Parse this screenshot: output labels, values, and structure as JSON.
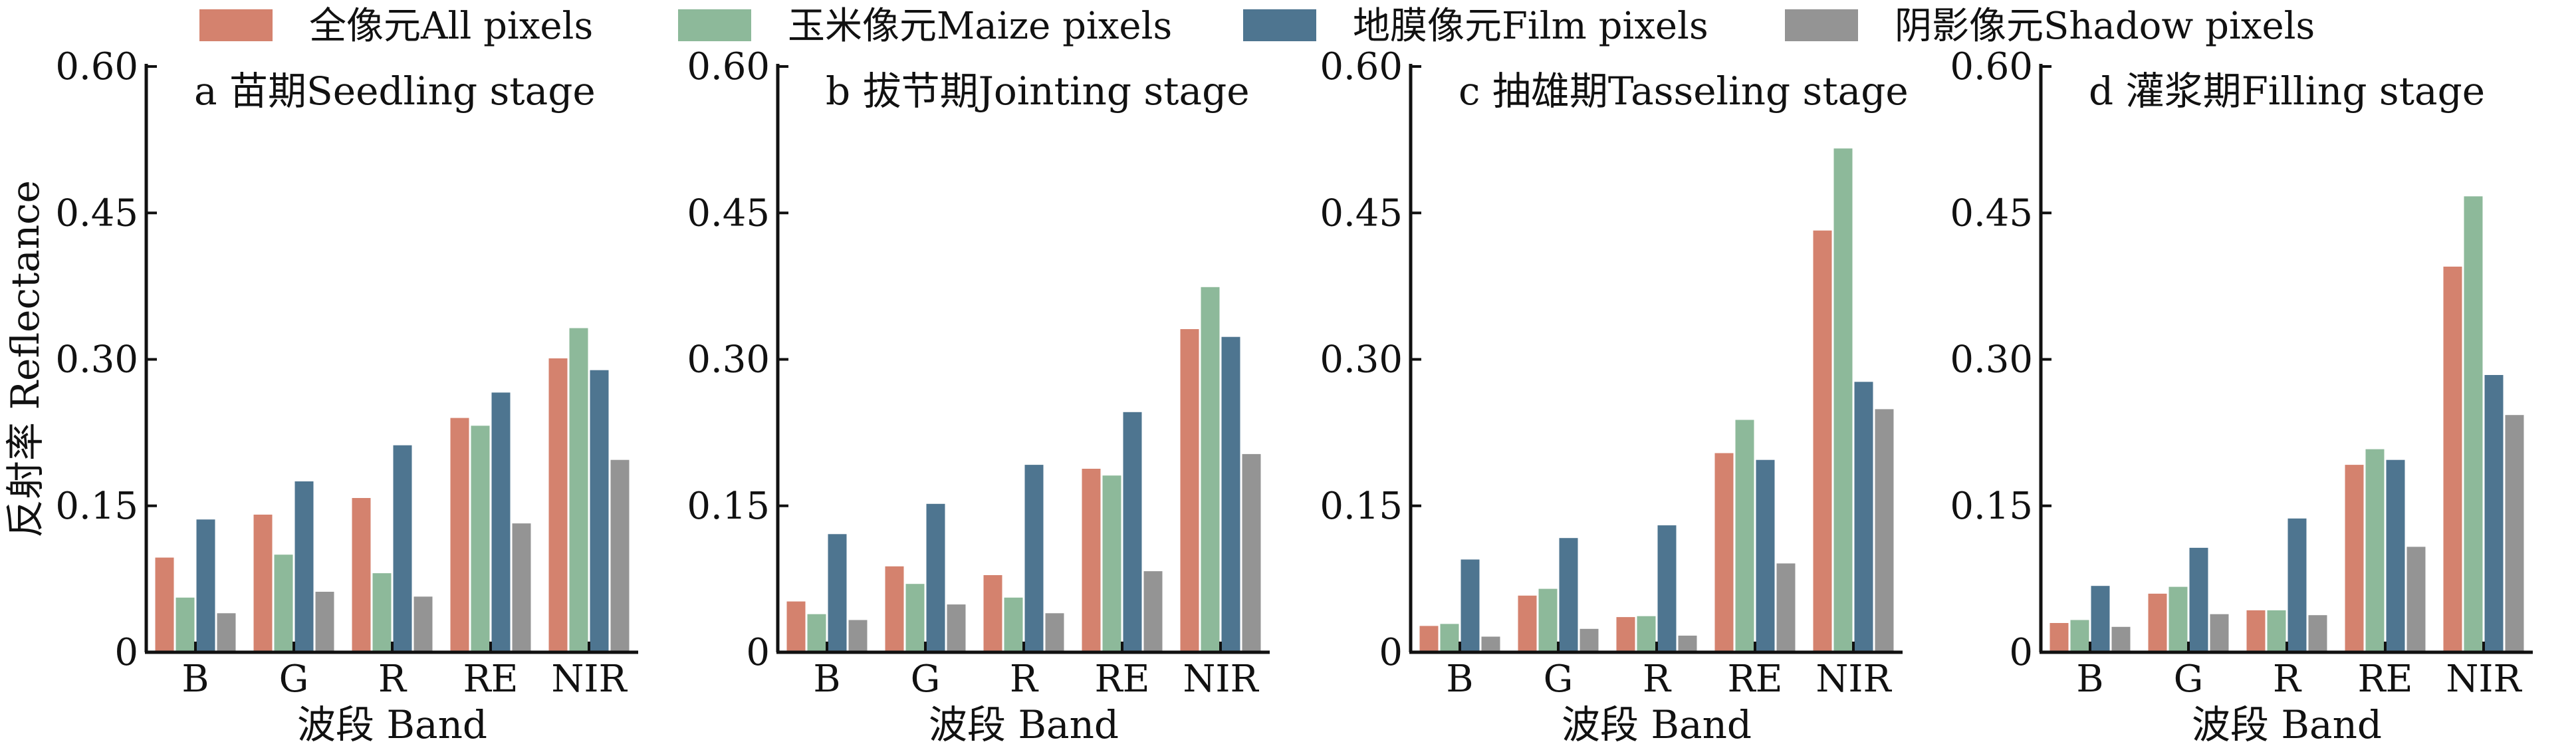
{
  "chart_data": {
    "type": "bar",
    "legend": {
      "placement": "top",
      "entries": [
        {
          "label": "全像元All pixels",
          "color": "#D4826E"
        },
        {
          "label": "玉米像元Maize pixels",
          "color": "#8DB99A"
        },
        {
          "label": "地膜像元Film pixels",
          "color": "#4E7590"
        },
        {
          "label": "阴影像元Shadow pixels",
          "color": "#949494"
        }
      ]
    },
    "ylabel": "反射率 Reflectance",
    "xlabel": "波段 Band",
    "ylim": [
      0,
      0.6
    ],
    "yticks": [
      "0",
      "0.15",
      "0.30",
      "0.45",
      "0.60"
    ],
    "categories": [
      "B",
      "G",
      "R",
      "RE",
      "NIR"
    ],
    "grid": false,
    "panels": [
      {
        "title": "a  苗期Seedling stage",
        "series": [
          {
            "name": "全像元All pixels",
            "values": [
              0.097,
              0.141,
              0.158,
              0.24,
              0.301
            ]
          },
          {
            "name": "玉米像元Maize pixels",
            "values": [
              0.056,
              0.1,
              0.081,
              0.232,
              0.332
            ]
          },
          {
            "name": "地膜像元Film pixels",
            "values": [
              0.136,
              0.175,
              0.212,
              0.266,
              0.289
            ]
          },
          {
            "name": "阴影像元Shadow pixels",
            "values": [
              0.04,
              0.062,
              0.057,
              0.132,
              0.197
            ]
          }
        ]
      },
      {
        "title": "b  拔节期Jointing stage",
        "series": [
          {
            "name": "全像元All pixels",
            "values": [
              0.052,
              0.088,
              0.079,
              0.188,
              0.331
            ]
          },
          {
            "name": "玉米像元Maize pixels",
            "values": [
              0.039,
              0.07,
              0.056,
              0.181,
              0.374
            ]
          },
          {
            "name": "地膜像元Film pixels",
            "values": [
              0.121,
              0.152,
              0.192,
              0.246,
              0.323
            ]
          },
          {
            "name": "阴影像元Shadow pixels",
            "values": [
              0.033,
              0.049,
              0.04,
              0.083,
              0.203
            ]
          }
        ]
      },
      {
        "title": "c  抽雄期Tasseling stage",
        "series": [
          {
            "name": "全像元All pixels",
            "values": [
              0.027,
              0.058,
              0.036,
              0.204,
              0.432
            ]
          },
          {
            "name": "玉米像元Maize pixels",
            "values": [
              0.029,
              0.065,
              0.037,
              0.238,
              0.516
            ]
          },
          {
            "name": "地膜像元Film pixels",
            "values": [
              0.095,
              0.117,
              0.13,
              0.197,
              0.277
            ]
          },
          {
            "name": "阴影像元Shadow pixels",
            "values": [
              0.016,
              0.024,
              0.017,
              0.091,
              0.249
            ]
          }
        ]
      },
      {
        "title": "d  灌浆期Filling stage",
        "series": [
          {
            "name": "全像元All pixels",
            "values": [
              0.03,
              0.06,
              0.043,
              0.192,
              0.395
            ]
          },
          {
            "name": "玉米像元Maize pixels",
            "values": [
              0.033,
              0.067,
              0.043,
              0.208,
              0.467
            ]
          },
          {
            "name": "地膜像元Film pixels",
            "values": [
              0.068,
              0.107,
              0.137,
              0.197,
              0.284
            ]
          },
          {
            "name": "阴影像元Shadow pixels",
            "values": [
              0.026,
              0.039,
              0.038,
              0.108,
              0.243
            ]
          }
        ]
      }
    ]
  }
}
